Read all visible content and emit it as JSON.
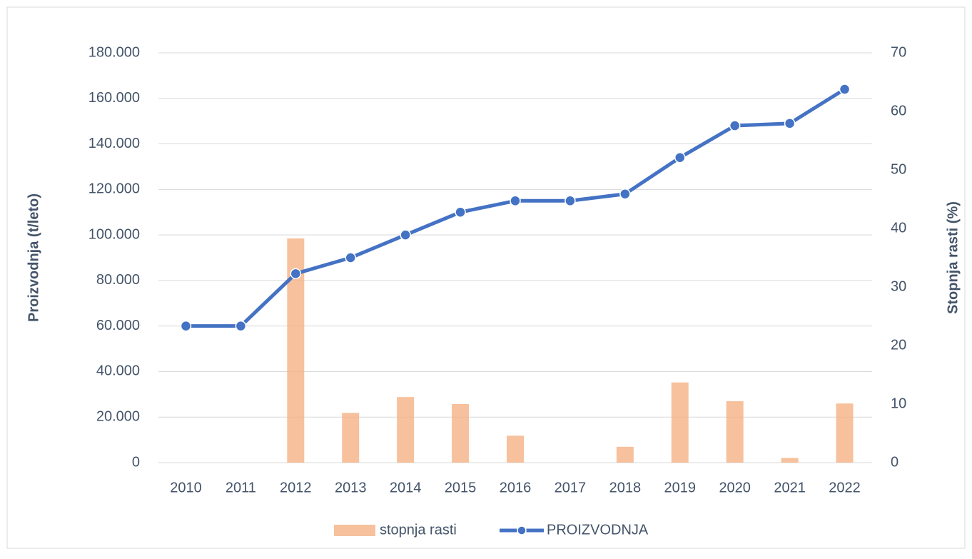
{
  "chart_data": {
    "type": "combo",
    "categories": [
      "2010",
      "2011",
      "2012",
      "2013",
      "2014",
      "2015",
      "2016",
      "2017",
      "2018",
      "2019",
      "2020",
      "2021",
      "2022"
    ],
    "y_label": "Proizvodnja (t/leto)",
    "y2_label": "Stopnja rasti (%)",
    "series": [
      {
        "name": "stopnja rasti",
        "type": "bar",
        "axis": "y2",
        "color": "#f4b183",
        "values": [
          null,
          0,
          38.3,
          8.5,
          11.2,
          10,
          4.6,
          0,
          2.7,
          13.7,
          10.5,
          0.8,
          10.1
        ]
      },
      {
        "name": "PROIZVODNJA",
        "type": "line",
        "axis": "y",
        "color": "#4472c4",
        "values": [
          60000,
          60000,
          83000,
          90000,
          100000,
          110000,
          115000,
          115000,
          118000,
          134000,
          148000,
          149000,
          164000
        ]
      }
    ],
    "ylim": [
      0,
      180000
    ],
    "yticks": [
      0,
      {
        "value": 20000,
        "label": "20.000"
      },
      {
        "value": 40000,
        "label": "40.000"
      },
      {
        "value": 60000,
        "label": "60.000"
      },
      {
        "value": 80000,
        "label": "80.000"
      },
      {
        "value": 100000,
        "label": "100.000"
      },
      {
        "value": 120000,
        "label": "120.000"
      },
      {
        "value": 140000,
        "label": "140.000"
      },
      {
        "value": 160000,
        "label": "160.000"
      },
      {
        "value": 180000,
        "label": "180.000"
      }
    ],
    "y2lim": [
      0,
      70
    ],
    "y2ticks": [
      0,
      10,
      20,
      30,
      40,
      50,
      60,
      70
    ],
    "grid": true,
    "legend": "bottom"
  }
}
